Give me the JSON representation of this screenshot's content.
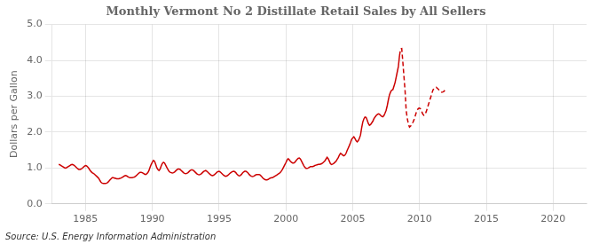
{
  "chart_data": {
    "type": "line",
    "title": "Monthly Vermont No 2 Distillate Retail Sales by All Sellers",
    "ylabel": "Dollars per Gallon",
    "annotations": [
      "Source: U.S. Energy Information Administration"
    ],
    "xlim": [
      1982.5,
      2022.5
    ],
    "xticks": [
      1985,
      1990,
      1995,
      2000,
      2005,
      2010,
      2015,
      2020
    ],
    "ylim": [
      0.0,
      5.0
    ],
    "yticks": [
      {
        "value": 0.0,
        "label": "0.0"
      },
      {
        "value": 1.0,
        "label": "1.0"
      },
      {
        "value": 2.0,
        "label": "2.0"
      },
      {
        "value": 3.0,
        "label": "3.0"
      },
      {
        "value": 4.0,
        "label": "4.0"
      },
      {
        "value": 5.0,
        "label": "5.0"
      }
    ],
    "grid": true,
    "series": [
      {
        "color": "#cc0000",
        "line_style": "solid",
        "x": [
          1983.0,
          1983.083,
          1983.167,
          1983.25,
          1983.333,
          1983.417,
          1983.5,
          1983.583,
          1983.667,
          1983.75,
          1983.833,
          1983.917,
          1984.0,
          1984.083,
          1984.167,
          1984.25,
          1984.333,
          1984.417,
          1984.5,
          1984.583,
          1984.667,
          1984.75,
          1984.833,
          1984.917,
          1985.0,
          1985.083,
          1985.167,
          1985.25,
          1985.333,
          1985.417,
          1985.5,
          1985.583,
          1985.667,
          1985.75,
          1985.833,
          1985.917,
          1986.0,
          1986.083,
          1986.167,
          1986.25,
          1986.333,
          1986.417,
          1986.5,
          1986.583,
          1986.667,
          1986.75,
          1986.833,
          1986.917,
          1987.0,
          1987.083,
          1987.167,
          1987.25,
          1987.333,
          1987.417,
          1987.5,
          1987.583,
          1987.667,
          1987.75,
          1987.833,
          1987.917,
          1988.0,
          1988.083,
          1988.167,
          1988.25,
          1988.333,
          1988.417,
          1988.5,
          1988.583,
          1988.667,
          1988.75,
          1988.833,
          1988.917,
          1989.0,
          1989.083,
          1989.167,
          1989.25,
          1989.333,
          1989.417,
          1989.5,
          1989.583,
          1989.667,
          1989.75,
          1989.833,
          1989.917,
          1990.0,
          1990.083,
          1990.167,
          1990.25,
          1990.333,
          1990.417,
          1990.5,
          1990.583,
          1990.667,
          1990.75,
          1990.833,
          1990.917,
          1991.0,
          1991.083,
          1991.167,
          1991.25,
          1991.333,
          1991.417,
          1991.5,
          1991.583,
          1991.667,
          1991.75,
          1991.833,
          1991.917,
          1992.0,
          1992.083,
          1992.167,
          1992.25,
          1992.333,
          1992.417,
          1992.5,
          1992.583,
          1992.667,
          1992.75,
          1992.833,
          1992.917,
          1993.0,
          1993.083,
          1993.167,
          1993.25,
          1993.333,
          1993.417,
          1993.5,
          1993.583,
          1993.667,
          1993.75,
          1993.833,
          1993.917,
          1994.0,
          1994.083,
          1994.167,
          1994.25,
          1994.333,
          1994.417,
          1994.5,
          1994.583,
          1994.667,
          1994.75,
          1994.833,
          1994.917,
          1995.0,
          1995.083,
          1995.167,
          1995.25,
          1995.333,
          1995.417,
          1995.5,
          1995.583,
          1995.667,
          1995.75,
          1995.833,
          1995.917,
          1996.0,
          1996.083,
          1996.167,
          1996.25,
          1996.333,
          1996.417,
          1996.5,
          1996.583,
          1996.667,
          1996.75,
          1996.833,
          1996.917,
          1997.0,
          1997.083,
          1997.167,
          1997.25,
          1997.333,
          1997.417,
          1997.5,
          1997.583,
          1997.667,
          1997.75,
          1997.833,
          1997.917,
          1998.0,
          1998.083,
          1998.167,
          1998.25,
          1998.333,
          1998.417,
          1998.5,
          1998.583,
          1998.667,
          1998.75,
          1998.833,
          1998.917,
          1999.0,
          1999.083,
          1999.167,
          1999.25,
          1999.333,
          1999.417,
          1999.5,
          1999.583,
          1999.667,
          1999.75,
          1999.833,
          1999.917,
          2000.0,
          2000.083,
          2000.167,
          2000.25,
          2000.333,
          2000.417,
          2000.5,
          2000.583,
          2000.667,
          2000.75,
          2000.833,
          2000.917,
          2001.0,
          2001.083,
          2001.167,
          2001.25,
          2001.333,
          2001.417,
          2001.5,
          2001.583,
          2001.667,
          2001.75,
          2001.833,
          2001.917,
          2002.0,
          2002.083,
          2002.167,
          2002.25,
          2002.333,
          2002.417,
          2002.5,
          2002.583,
          2002.667,
          2002.75,
          2002.833,
          2002.917,
          2003.0,
          2003.083,
          2003.167,
          2003.25,
          2003.333,
          2003.417,
          2003.5,
          2003.583,
          2003.667,
          2003.75,
          2003.833,
          2003.917,
          2004.0,
          2004.083,
          2004.167,
          2004.25,
          2004.333,
          2004.417,
          2004.5,
          2004.583,
          2004.667,
          2004.75,
          2004.833,
          2004.917,
          2005.0,
          2005.083,
          2005.167,
          2005.25,
          2005.333,
          2005.417,
          2005.5,
          2005.583,
          2005.667,
          2005.75,
          2005.833,
          2005.917,
          2006.0,
          2006.083,
          2006.167,
          2006.25,
          2006.333,
          2006.5,
          2006.583,
          2006.667,
          2006.75,
          2006.833,
          2006.917,
          2007.0,
          2007.083,
          2007.167,
          2007.25,
          2007.333,
          2007.417,
          2007.5,
          2007.583,
          2007.667,
          2007.75,
          2007.833,
          2007.917,
          2008.0,
          2008.083,
          2008.167,
          2008.25,
          2008.333,
          2008.417,
          2008.5
        ],
        "values": [
          1.1,
          1.09,
          1.07,
          1.05,
          1.03,
          1.01,
          1.0,
          1.01,
          1.03,
          1.05,
          1.07,
          1.09,
          1.1,
          1.09,
          1.07,
          1.04,
          1.01,
          0.98,
          0.96,
          0.96,
          0.97,
          0.99,
          1.02,
          1.05,
          1.07,
          1.06,
          1.03,
          0.99,
          0.94,
          0.9,
          0.87,
          0.85,
          0.83,
          0.8,
          0.77,
          0.74,
          0.71,
          0.65,
          0.6,
          0.58,
          0.57,
          0.57,
          0.57,
          0.58,
          0.6,
          0.63,
          0.67,
          0.7,
          0.73,
          0.73,
          0.72,
          0.71,
          0.7,
          0.7,
          0.7,
          0.71,
          0.72,
          0.74,
          0.76,
          0.78,
          0.79,
          0.78,
          0.76,
          0.74,
          0.73,
          0.73,
          0.73,
          0.74,
          0.75,
          0.77,
          0.8,
          0.83,
          0.86,
          0.88,
          0.88,
          0.87,
          0.85,
          0.83,
          0.82,
          0.84,
          0.87,
          0.93,
          1.02,
          1.1,
          1.16,
          1.21,
          1.19,
          1.11,
          1.01,
          0.96,
          0.93,
          0.97,
          1.06,
          1.13,
          1.16,
          1.14,
          1.08,
          1.02,
          0.96,
          0.91,
          0.88,
          0.87,
          0.86,
          0.87,
          0.89,
          0.92,
          0.95,
          0.97,
          0.97,
          0.96,
          0.93,
          0.9,
          0.87,
          0.85,
          0.84,
          0.85,
          0.87,
          0.9,
          0.93,
          0.95,
          0.95,
          0.93,
          0.9,
          0.87,
          0.84,
          0.82,
          0.81,
          0.82,
          0.84,
          0.87,
          0.9,
          0.92,
          0.93,
          0.91,
          0.88,
          0.85,
          0.82,
          0.8,
          0.79,
          0.8,
          0.82,
          0.85,
          0.88,
          0.9,
          0.91,
          0.89,
          0.86,
          0.83,
          0.8,
          0.78,
          0.77,
          0.78,
          0.8,
          0.83,
          0.86,
          0.88,
          0.9,
          0.91,
          0.9,
          0.87,
          0.83,
          0.8,
          0.78,
          0.79,
          0.82,
          0.86,
          0.89,
          0.91,
          0.91,
          0.89,
          0.86,
          0.82,
          0.79,
          0.77,
          0.76,
          0.77,
          0.79,
          0.81,
          0.82,
          0.82,
          0.82,
          0.8,
          0.77,
          0.73,
          0.7,
          0.68,
          0.67,
          0.67,
          0.68,
          0.7,
          0.72,
          0.73,
          0.73,
          0.75,
          0.77,
          0.79,
          0.81,
          0.83,
          0.85,
          0.88,
          0.92,
          0.97,
          1.03,
          1.09,
          1.15,
          1.22,
          1.26,
          1.23,
          1.19,
          1.16,
          1.14,
          1.14,
          1.16,
          1.2,
          1.24,
          1.27,
          1.28,
          1.25,
          1.19,
          1.13,
          1.07,
          1.02,
          0.99,
          0.99,
          1.0,
          1.02,
          1.04,
          1.04,
          1.04,
          1.05,
          1.07,
          1.08,
          1.09,
          1.1,
          1.1,
          1.11,
          1.12,
          1.14,
          1.17,
          1.2,
          1.25,
          1.3,
          1.26,
          1.19,
          1.12,
          1.1,
          1.11,
          1.13,
          1.16,
          1.19,
          1.24,
          1.29,
          1.36,
          1.41,
          1.39,
          1.36,
          1.34,
          1.36,
          1.41,
          1.49,
          1.56,
          1.63,
          1.71,
          1.8,
          1.84,
          1.87,
          1.82,
          1.76,
          1.73,
          1.76,
          1.83,
          1.92,
          2.12,
          2.28,
          2.37,
          2.42,
          2.41,
          2.33,
          2.24,
          2.19,
          2.21,
          2.3,
          2.37,
          2.42,
          2.46,
          2.49,
          2.51,
          2.5,
          2.47,
          2.44,
          2.43,
          2.46,
          2.53,
          2.61,
          2.74,
          2.9,
          3.04,
          3.12,
          3.17,
          3.18,
          3.28,
          3.38,
          3.53,
          3.68,
          3.83,
          4.13
        ]
      },
      {
        "color": "#cc0000",
        "line_style": "dashed",
        "x": [
          2008.5,
          2008.583,
          2008.667,
          2008.75,
          2008.833,
          2008.917,
          2009.0,
          2009.083,
          2009.167,
          2009.25,
          2009.333,
          2009.417,
          2009.5,
          2009.583,
          2009.667,
          2009.75,
          2009.833,
          2009.917,
          2010.0,
          2010.083,
          2010.167,
          2010.25,
          2010.333,
          2010.417,
          2010.5,
          2010.583,
          2010.667,
          2010.75,
          2010.833,
          2010.917,
          2011.0,
          2011.083,
          2011.167,
          2011.25,
          2011.333,
          2011.417,
          2011.5,
          2011.583,
          2011.667,
          2011.75,
          2011.833,
          2011.917,
          2012.0
        ],
        "values": [
          4.13,
          4.32,
          4.33,
          3.95,
          3.55,
          3.15,
          2.6,
          2.38,
          2.22,
          2.14,
          2.17,
          2.21,
          2.27,
          2.34,
          2.44,
          2.54,
          2.62,
          2.66,
          2.67,
          2.64,
          2.57,
          2.5,
          2.47,
          2.5,
          2.57,
          2.67,
          2.77,
          2.87,
          2.97,
          3.07,
          3.17,
          3.22,
          3.24,
          3.25,
          3.22,
          3.19,
          3.16,
          3.13,
          3.11,
          3.12,
          3.14,
          3.18,
          3.22
        ]
      }
    ]
  }
}
